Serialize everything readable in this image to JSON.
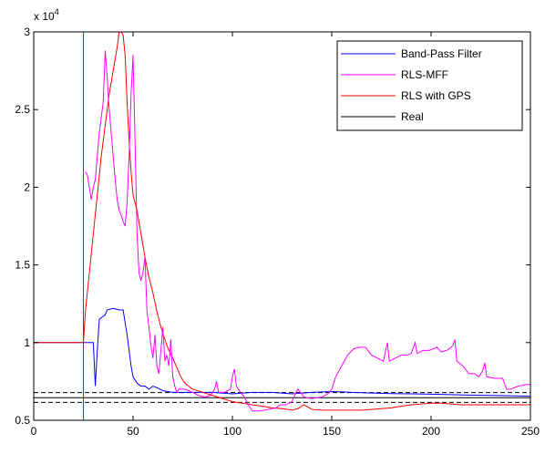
{
  "chart_data": {
    "type": "line",
    "exponent_label": {
      "base": "x 10",
      "power": "4"
    },
    "xlim": [
      0,
      250
    ],
    "ylim": [
      0.5,
      3.0
    ],
    "xticks": [
      0,
      50,
      100,
      150,
      200,
      250
    ],
    "xtick_labels": [
      "0",
      "50",
      "100",
      "150",
      "200",
      "250"
    ],
    "yticks": [
      0.5,
      1.0,
      1.5,
      2.0,
      2.5,
      3.0
    ],
    "ytick_labels": [
      "0.5",
      "1",
      "1.5",
      "2",
      "2.5",
      "3"
    ],
    "grid": false,
    "legend_position": "top-right",
    "vertical_marker": {
      "x": 25,
      "color": "#ff0000"
    },
    "reference_lines": [
      {
        "y": 0.678,
        "color": "#000000",
        "style": "dashed"
      },
      {
        "y": 0.615,
        "color": "#000000",
        "style": "dashed"
      }
    ],
    "series": [
      {
        "name": "Band-Pass Filter",
        "color": "#0000ff",
        "points": [
          [
            0,
            1.0
          ],
          [
            30,
            1.0
          ],
          [
            31,
            0.72
          ],
          [
            32,
            0.95
          ],
          [
            33,
            1.15
          ],
          [
            36,
            1.18
          ],
          [
            37,
            1.21
          ],
          [
            40,
            1.22
          ],
          [
            43,
            1.21
          ],
          [
            45,
            1.21
          ],
          [
            47,
            1.05
          ],
          [
            49,
            0.85
          ],
          [
            50,
            0.78
          ],
          [
            52,
            0.74
          ],
          [
            54,
            0.72
          ],
          [
            56,
            0.72
          ],
          [
            58,
            0.7
          ],
          [
            60,
            0.72
          ],
          [
            62,
            0.71
          ],
          [
            65,
            0.69
          ],
          [
            70,
            0.68
          ],
          [
            80,
            0.68
          ],
          [
            90,
            0.68
          ],
          [
            100,
            0.67
          ],
          [
            110,
            0.68
          ],
          [
            120,
            0.68
          ],
          [
            130,
            0.67
          ],
          [
            140,
            0.68
          ],
          [
            150,
            0.685
          ],
          [
            160,
            0.68
          ],
          [
            170,
            0.675
          ],
          [
            180,
            0.672
          ],
          [
            190,
            0.67
          ],
          [
            200,
            0.668
          ],
          [
            210,
            0.665
          ],
          [
            220,
            0.662
          ],
          [
            230,
            0.66
          ],
          [
            240,
            0.658
          ],
          [
            250,
            0.655
          ]
        ]
      },
      {
        "name": "RLS-MFF",
        "color": "#ff00ff",
        "points": [
          [
            26,
            2.1
          ],
          [
            27,
            2.08
          ],
          [
            28,
            2.0
          ],
          [
            29,
            1.92
          ],
          [
            30,
            2.0
          ],
          [
            31,
            2.05
          ],
          [
            32,
            2.2
          ],
          [
            33,
            2.35
          ],
          [
            34,
            2.45
          ],
          [
            35,
            2.55
          ],
          [
            36,
            2.88
          ],
          [
            37,
            2.7
          ],
          [
            38,
            2.5
          ],
          [
            39,
            2.35
          ],
          [
            40,
            2.2
          ],
          [
            41,
            2.05
          ],
          [
            42,
            1.92
          ],
          [
            43,
            1.85
          ],
          [
            44,
            1.82
          ],
          [
            45,
            1.78
          ],
          [
            46,
            1.75
          ],
          [
            47,
            1.9
          ],
          [
            48,
            2.2
          ],
          [
            49,
            2.6
          ],
          [
            50,
            2.85
          ],
          [
            51,
            2.3
          ],
          [
            52,
            1.7
          ],
          [
            53,
            1.45
          ],
          [
            54,
            1.4
          ],
          [
            55,
            1.45
          ],
          [
            56,
            1.55
          ],
          [
            57,
            1.2
          ],
          [
            58,
            1.1
          ],
          [
            59,
            0.98
          ],
          [
            60,
            0.9
          ],
          [
            61,
            1.05
          ],
          [
            62,
            0.85
          ],
          [
            63,
            0.8
          ],
          [
            64,
            0.95
          ],
          [
            65,
            1.1
          ],
          [
            66,
            0.88
          ],
          [
            67,
            0.92
          ],
          [
            68,
            0.85
          ],
          [
            69,
            1.02
          ],
          [
            70,
            0.78
          ],
          [
            71,
            0.72
          ],
          [
            72,
            0.68
          ],
          [
            73,
            0.7
          ],
          [
            74,
            0.7
          ],
          [
            76,
            0.7
          ],
          [
            78,
            0.69
          ],
          [
            80,
            0.68
          ],
          [
            83,
            0.66
          ],
          [
            86,
            0.65
          ],
          [
            89,
            0.66
          ],
          [
            91,
            0.7
          ],
          [
            92,
            0.75
          ],
          [
            93,
            0.68
          ],
          [
            96,
            0.68
          ],
          [
            99,
            0.7
          ],
          [
            100,
            0.78
          ],
          [
            101,
            0.83
          ],
          [
            102,
            0.72
          ],
          [
            104,
            0.68
          ],
          [
            106,
            0.65
          ],
          [
            108,
            0.6
          ],
          [
            110,
            0.56
          ],
          [
            114,
            0.56
          ],
          [
            118,
            0.57
          ],
          [
            122,
            0.58
          ],
          [
            124,
            0.6
          ],
          [
            127,
            0.6
          ],
          [
            130,
            0.62
          ],
          [
            132,
            0.68
          ],
          [
            133,
            0.7
          ],
          [
            136,
            0.65
          ],
          [
            140,
            0.64
          ],
          [
            145,
            0.65
          ],
          [
            148,
            0.67
          ],
          [
            150,
            0.7
          ],
          [
            152,
            0.78
          ],
          [
            155,
            0.85
          ],
          [
            158,
            0.92
          ],
          [
            161,
            0.96
          ],
          [
            164,
            0.97
          ],
          [
            167,
            0.97
          ],
          [
            170,
            0.92
          ],
          [
            173,
            0.9
          ],
          [
            176,
            0.88
          ],
          [
            178,
            1.0
          ],
          [
            179,
            0.88
          ],
          [
            182,
            0.9
          ],
          [
            185,
            0.92
          ],
          [
            188,
            0.92
          ],
          [
            190,
            0.93
          ],
          [
            192,
            1.0
          ],
          [
            193,
            0.93
          ],
          [
            196,
            0.95
          ],
          [
            199,
            0.95
          ],
          [
            201,
            0.96
          ],
          [
            203,
            0.97
          ],
          [
            205,
            0.94
          ],
          [
            208,
            0.95
          ],
          [
            211,
            0.98
          ],
          [
            212,
            1.02
          ],
          [
            213,
            0.88
          ],
          [
            216,
            0.85
          ],
          [
            219,
            0.8
          ],
          [
            222,
            0.8
          ],
          [
            224,
            0.78
          ],
          [
            226,
            0.82
          ],
          [
            227,
            0.87
          ],
          [
            228,
            0.78
          ],
          [
            232,
            0.77
          ],
          [
            236,
            0.77
          ],
          [
            238,
            0.7
          ],
          [
            240,
            0.7
          ],
          [
            244,
            0.72
          ],
          [
            248,
            0.73
          ],
          [
            250,
            0.73
          ]
        ]
      },
      {
        "name": "RLS with GPS",
        "color": "#ff0000",
        "points": [
          [
            0,
            1.0
          ],
          [
            25,
            1.0
          ],
          [
            26,
            1.2
          ],
          [
            28,
            1.45
          ],
          [
            30,
            1.7
          ],
          [
            32,
            1.95
          ],
          [
            34,
            2.2
          ],
          [
            36,
            2.4
          ],
          [
            38,
            2.6
          ],
          [
            40,
            2.75
          ],
          [
            42,
            2.9
          ],
          [
            43,
            3.0
          ],
          [
            44,
            3.0
          ],
          [
            45,
            2.98
          ],
          [
            46,
            2.85
          ],
          [
            47,
            2.55
          ],
          [
            48,
            2.3
          ],
          [
            49,
            2.1
          ],
          [
            50,
            1.95
          ],
          [
            52,
            1.85
          ],
          [
            54,
            1.7
          ],
          [
            56,
            1.55
          ],
          [
            58,
            1.42
          ],
          [
            60,
            1.32
          ],
          [
            62,
            1.2
          ],
          [
            64,
            1.1
          ],
          [
            66,
            1.02
          ],
          [
            68,
            0.95
          ],
          [
            70,
            0.9
          ],
          [
            72,
            0.84
          ],
          [
            74,
            0.78
          ],
          [
            76,
            0.74
          ],
          [
            78,
            0.72
          ],
          [
            80,
            0.7
          ],
          [
            85,
            0.68
          ],
          [
            90,
            0.66
          ],
          [
            95,
            0.64
          ],
          [
            100,
            0.62
          ],
          [
            105,
            0.61
          ],
          [
            110,
            0.6
          ],
          [
            115,
            0.59
          ],
          [
            120,
            0.58
          ],
          [
            125,
            0.575
          ],
          [
            128,
            0.57
          ],
          [
            130,
            0.565
          ],
          [
            133,
            0.575
          ],
          [
            136,
            0.6
          ],
          [
            140,
            0.57
          ],
          [
            145,
            0.565
          ],
          [
            150,
            0.565
          ],
          [
            155,
            0.565
          ],
          [
            160,
            0.565
          ],
          [
            165,
            0.565
          ],
          [
            170,
            0.57
          ],
          [
            175,
            0.575
          ],
          [
            180,
            0.58
          ],
          [
            185,
            0.59
          ],
          [
            190,
            0.6
          ],
          [
            195,
            0.605
          ],
          [
            200,
            0.61
          ],
          [
            205,
            0.61
          ],
          [
            210,
            0.605
          ],
          [
            215,
            0.6
          ],
          [
            220,
            0.6
          ],
          [
            225,
            0.6
          ],
          [
            230,
            0.6
          ],
          [
            235,
            0.6
          ],
          [
            240,
            0.6
          ],
          [
            245,
            0.6
          ],
          [
            250,
            0.6
          ]
        ]
      },
      {
        "name": "Real",
        "color": "#000000",
        "points": [
          [
            0,
            0.645
          ],
          [
            250,
            0.645
          ]
        ]
      }
    ]
  }
}
